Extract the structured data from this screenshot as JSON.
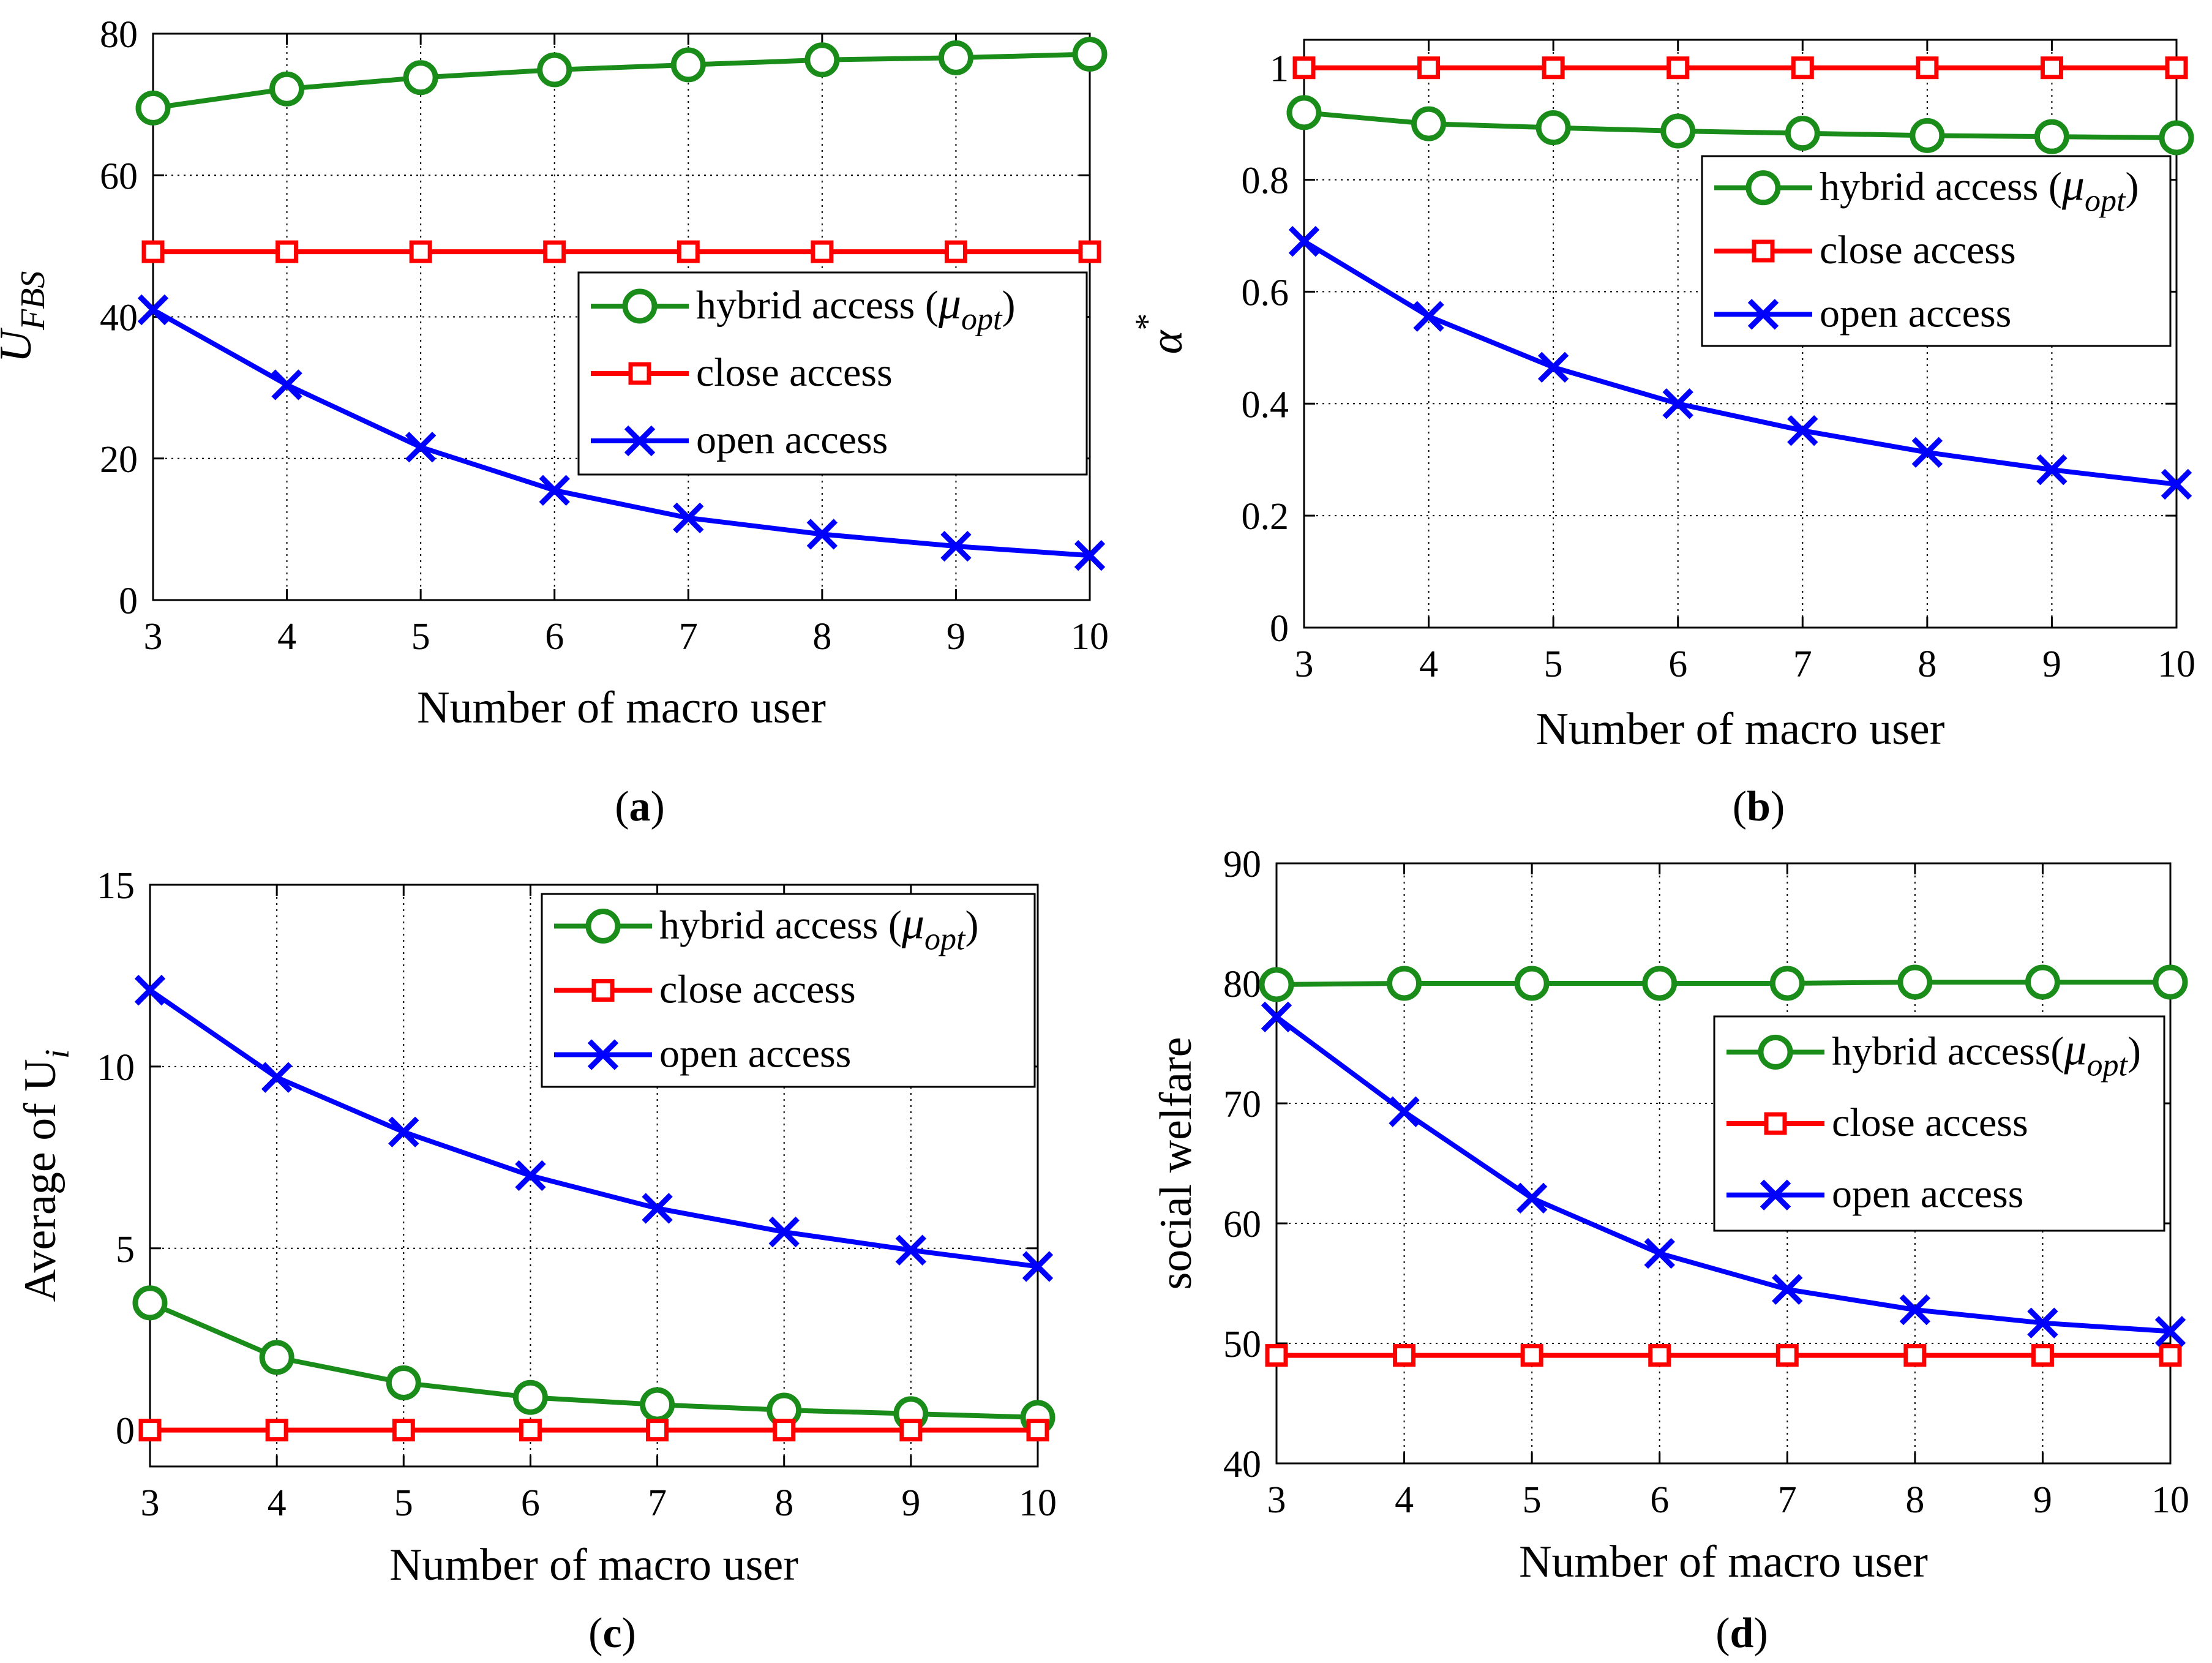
{
  "chart_data": [
    {
      "type": "line",
      "panel": "a",
      "caption_letter": "a",
      "xlabel": "Number of macro user",
      "ylabel": "U",
      "ylabel_sub": "FBS",
      "ylabel_layout": "plain",
      "x": [
        3,
        4,
        5,
        6,
        7,
        8,
        9,
        10
      ],
      "xlim": [
        3,
        10
      ],
      "ylim": [
        0,
        80
      ],
      "xticks": [
        "3",
        "4",
        "5",
        "6",
        "7",
        "8",
        "9",
        "10"
      ],
      "yticks": [
        0,
        20,
        40,
        60,
        80
      ],
      "ytick_labels": [
        "0",
        "20",
        "40",
        "60",
        "80"
      ],
      "grid": true,
      "legend_position": "center-right",
      "series": [
        {
          "name": "hybrid access (",
          "name_mu": "μ",
          "name_sub": "opt",
          "name_close": ")",
          "color": "#1a8c1a",
          "marker": "circle",
          "values": [
            69.5,
            72.2,
            73.8,
            74.9,
            75.6,
            76.3,
            76.6,
            77.1
          ]
        },
        {
          "name": "close access",
          "color": "#ff0000",
          "marker": "square",
          "values": [
            49.2,
            49.2,
            49.2,
            49.2,
            49.2,
            49.2,
            49.2,
            49.2
          ]
        },
        {
          "name": "open access",
          "color": "#0000ff",
          "marker": "x",
          "values": [
            41.0,
            30.4,
            21.6,
            15.5,
            11.6,
            9.3,
            7.6,
            6.3
          ]
        }
      ]
    },
    {
      "type": "line",
      "panel": "b",
      "caption_letter": "b",
      "xlabel": "Number of macro user",
      "ylabel": "α",
      "ylabel_sup": "*",
      "ylabel_layout": "plain",
      "x": [
        3,
        4,
        5,
        6,
        7,
        8,
        9,
        10
      ],
      "xlim": [
        3,
        10
      ],
      "ylim": [
        0,
        1.05
      ],
      "xticks": [
        "3",
        "4",
        "5",
        "6",
        "7",
        "8",
        "9",
        "10"
      ],
      "yticks": [
        0,
        0.2,
        0.4,
        0.6,
        0.8,
        1
      ],
      "ytick_labels": [
        "0",
        "0.2",
        "0.4",
        "0.6",
        "0.8",
        "1"
      ],
      "grid": true,
      "legend_position": "top-right",
      "series": [
        {
          "name": "hybrid access (",
          "name_mu": "μ",
          "name_sub": "opt",
          "name_close": ")",
          "color": "#1a8c1a",
          "marker": "circle",
          "values": [
            0.92,
            0.9,
            0.893,
            0.887,
            0.883,
            0.879,
            0.877,
            0.875
          ]
        },
        {
          "name": "close access",
          "color": "#ff0000",
          "marker": "square",
          "values": [
            1.0,
            1.0,
            1.0,
            1.0,
            1.0,
            1.0,
            1.0,
            1.0
          ]
        },
        {
          "name": "open access",
          "color": "#0000ff",
          "marker": "x",
          "values": [
            0.69,
            0.556,
            0.465,
            0.4,
            0.352,
            0.313,
            0.282,
            0.256
          ]
        }
      ]
    },
    {
      "type": "line",
      "panel": "c",
      "caption_letter": "c",
      "xlabel": "Number of macro user",
      "ylabel": "Average of  U",
      "ylabel_sub": "i",
      "ylabel_layout": "plain",
      "x": [
        3,
        4,
        5,
        6,
        7,
        8,
        9,
        10
      ],
      "xlim": [
        3,
        10
      ],
      "ylim": [
        -1,
        15
      ],
      "xticks": [
        "3",
        "4",
        "5",
        "6",
        "7",
        "8",
        "9",
        "10"
      ],
      "yticks": [
        0,
        5,
        10,
        15
      ],
      "ytick_labels": [
        "0",
        "5",
        "10",
        "15"
      ],
      "grid": true,
      "legend_position": "top-right",
      "series": [
        {
          "name": "hybrid access (",
          "name_mu": "μ",
          "name_sub": "opt",
          "name_close": ")",
          "color": "#1a8c1a",
          "marker": "circle",
          "values": [
            3.5,
            2.0,
            1.3,
            0.9,
            0.7,
            0.55,
            0.45,
            0.35
          ]
        },
        {
          "name": "close access",
          "color": "#ff0000",
          "marker": "square",
          "values": [
            0,
            0,
            0,
            0,
            0,
            0,
            0,
            0
          ]
        },
        {
          "name": "open access",
          "color": "#0000ff",
          "marker": "x",
          "values": [
            12.1,
            9.7,
            8.2,
            7.0,
            6.1,
            5.45,
            4.95,
            4.5
          ]
        }
      ]
    },
    {
      "type": "line",
      "panel": "d",
      "caption_letter": "d",
      "xlabel": "Number of macro user",
      "ylabel": "social welfare",
      "ylabel_layout": "plain",
      "x": [
        3,
        4,
        5,
        6,
        7,
        8,
        9,
        10
      ],
      "xlim": [
        3,
        10
      ],
      "ylim": [
        40,
        90
      ],
      "xticks": [
        "3",
        "4",
        "5",
        "6",
        "7",
        "8",
        "9",
        "10"
      ],
      "yticks": [
        40,
        50,
        60,
        70,
        80,
        90
      ],
      "ytick_labels": [
        "40",
        "50",
        "60",
        "70",
        "80",
        "90"
      ],
      "grid": true,
      "legend_position": "center-right",
      "series": [
        {
          "name": "hybrid access(",
          "name_mu": "μ",
          "name_sub": "opt",
          "name_close": ")",
          "color": "#1a8c1a",
          "marker": "circle",
          "values": [
            79.9,
            80.0,
            80.0,
            80.0,
            80.0,
            80.1,
            80.1,
            80.1
          ]
        },
        {
          "name": "close access",
          "color": "#ff0000",
          "marker": "square",
          "values": [
            49.0,
            49.0,
            49.0,
            49.0,
            49.0,
            49.0,
            49.0,
            49.0
          ]
        },
        {
          "name": "open access",
          "color": "#0000ff",
          "marker": "x",
          "values": [
            77.2,
            69.3,
            62.1,
            57.5,
            54.5,
            52.8,
            51.7,
            51.0
          ]
        }
      ]
    }
  ]
}
